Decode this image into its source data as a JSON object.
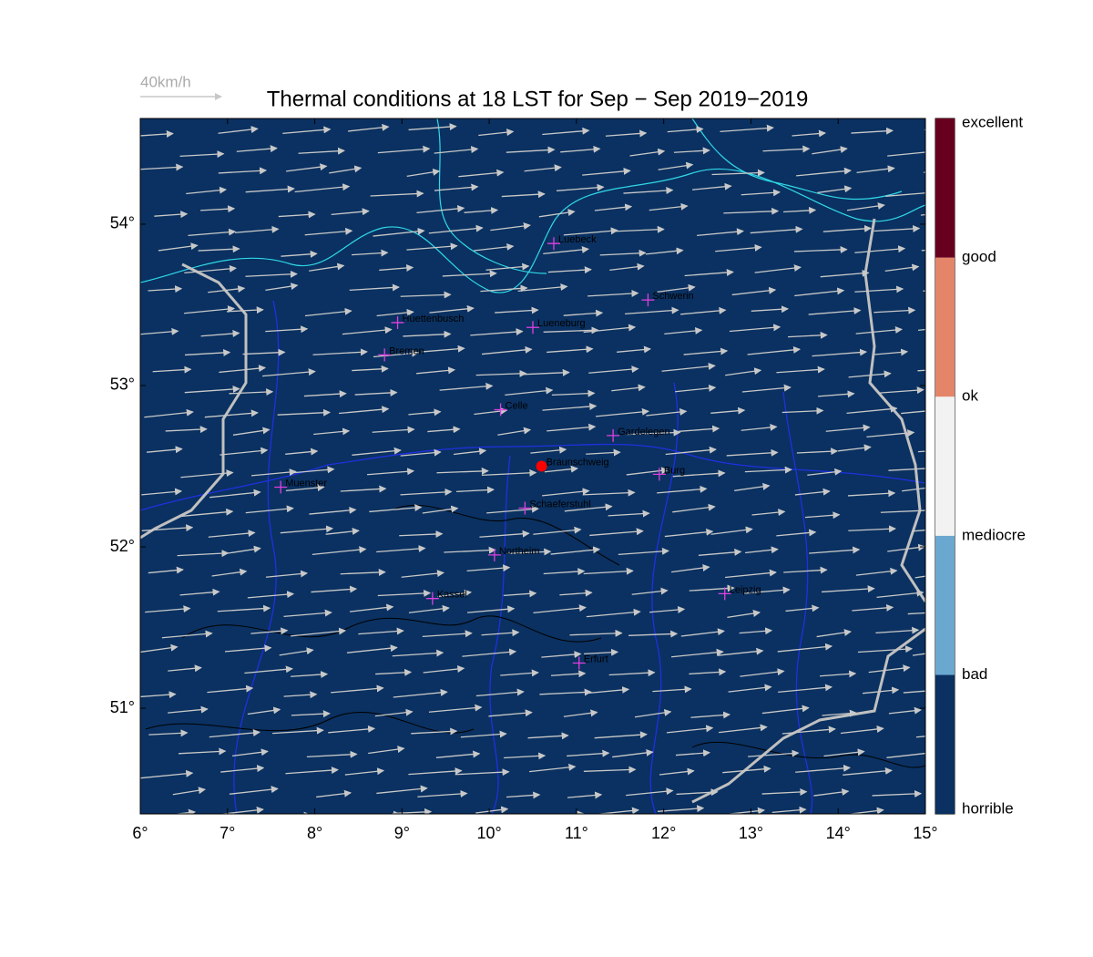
{
  "chart_data": {
    "type": "map",
    "title": "Thermal conditions at 18 LST for Sep − Sep  2019−2019",
    "wind_scale_label": "40km/h",
    "background_color": "#0a3161",
    "xlim": [
      6,
      15
    ],
    "ylim": [
      50.345,
      54.655
    ],
    "xticks": [
      {
        "value": 6,
        "label": "6°"
      },
      {
        "value": 7,
        "label": "7°"
      },
      {
        "value": 8,
        "label": "8°"
      },
      {
        "value": 9,
        "label": "9°"
      },
      {
        "value": 10,
        "label": "10°"
      },
      {
        "value": 11,
        "label": "11°"
      },
      {
        "value": 12,
        "label": "12°"
      },
      {
        "value": 13,
        "label": "13°"
      },
      {
        "value": 14,
        "label": "14°"
      },
      {
        "value": 15,
        "label": "15°"
      }
    ],
    "yticks": [
      {
        "value": 51,
        "label": "51°"
      },
      {
        "value": 52,
        "label": "52°"
      },
      {
        "value": 53,
        "label": "53°"
      },
      {
        "value": 54,
        "label": "54°"
      }
    ],
    "colorbar": {
      "labels": [
        "horrible",
        "bad",
        "mediocre",
        "ok",
        "good",
        "excellent"
      ],
      "colors": [
        "#0a3161",
        "#6aa8d0",
        "#f2f2f2",
        "#e4856a",
        "#67001f"
      ]
    },
    "city_color": "#e040e0",
    "highlight_color": "#ff0000",
    "cities": [
      {
        "name": "Luebeck",
        "lon": 10.74,
        "lat": 53.88
      },
      {
        "name": "Schwerin",
        "lon": 11.82,
        "lat": 53.53
      },
      {
        "name": "Huettenbusch",
        "lon": 8.95,
        "lat": 53.39
      },
      {
        "name": "Lueneburg",
        "lon": 10.5,
        "lat": 53.36
      },
      {
        "name": "Bremen",
        "lon": 8.8,
        "lat": 53.19
      },
      {
        "name": "Celle",
        "lon": 10.13,
        "lat": 52.85
      },
      {
        "name": "Gardelegen",
        "lon": 11.42,
        "lat": 52.69
      },
      {
        "name": "Braunschweig",
        "lon": 10.6,
        "lat": 52.5,
        "highlight": true
      },
      {
        "name": "Burg",
        "lon": 11.95,
        "lat": 52.45
      },
      {
        "name": "Muenster",
        "lon": 7.61,
        "lat": 52.37
      },
      {
        "name": "Schaeferstuhl",
        "lon": 10.41,
        "lat": 52.24
      },
      {
        "name": "Northeim",
        "lon": 10.06,
        "lat": 51.95
      },
      {
        "name": "Kassel",
        "lon": 9.35,
        "lat": 51.68
      },
      {
        "name": "Leipzig",
        "lon": 12.7,
        "lat": 51.71
      },
      {
        "name": "Erfurt",
        "lon": 11.03,
        "lat": 51.28
      }
    ]
  }
}
